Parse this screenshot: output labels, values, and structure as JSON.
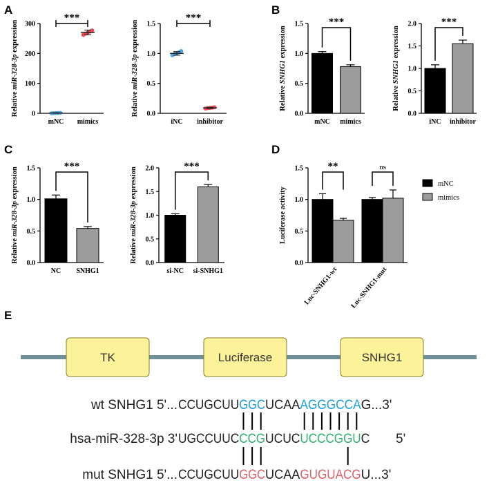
{
  "panel_letters": {
    "A": "A",
    "B": "B",
    "C": "C",
    "D": "D",
    "E": "E"
  },
  "sig": {
    "three": "***",
    "two": "**",
    "ns": "ns"
  },
  "colors": {
    "black": "#000000",
    "gray": "#9c9c9c",
    "blue": "#4fa3e0",
    "red": "#e8474f",
    "seq_blue": "#1aa0dc",
    "seq_green": "#2db26e",
    "seq_red": "#e0606a",
    "box_fill": "#fbf29a",
    "box_stroke": "#8a7d2a",
    "line": "#6f8f99"
  },
  "chart_data": [
    {
      "id": "A1",
      "type": "scatter",
      "ylabel_pre": "Relative ",
      "ylabel_it": "miR-328-3p",
      "ylabel_post": " expression",
      "categories": [
        "mNC",
        "mimics"
      ],
      "ylim": [
        0,
        300
      ],
      "yticks": [
        0,
        100,
        200,
        300
      ],
      "means": [
        1,
        270
      ],
      "errors": [
        1,
        8
      ],
      "points": [
        [
          0,
          0.5,
          0.8,
          1.2,
          1.5
        ],
        [
          262,
          266,
          270,
          273,
          277
        ]
      ],
      "point_colors": [
        "blue",
        "red"
      ],
      "sig": "***"
    },
    {
      "id": "A2",
      "type": "scatter",
      "ylabel_pre": "Relative ",
      "ylabel_it": "miR-328-3p",
      "ylabel_post": " expression",
      "categories": [
        "iNC",
        "inhibitor"
      ],
      "ylim": [
        0,
        1.5
      ],
      "yticks": [
        0,
        0.5,
        1.0,
        1.5
      ],
      "means": [
        1.0,
        0.09
      ],
      "errors": [
        0.03,
        0.01
      ],
      "points": [
        [
          0.97,
          0.99,
          1.0,
          1.02,
          1.04
        ],
        [
          0.08,
          0.085,
          0.09,
          0.095,
          0.1
        ]
      ],
      "point_colors": [
        "blue",
        "red"
      ],
      "sig": "***"
    },
    {
      "id": "B1",
      "type": "bar",
      "ylabel_pre": "Relative ",
      "ylabel_it": "SNHG1",
      "ylabel_post": " expression",
      "categories": [
        "mNC",
        "mimics"
      ],
      "ylim": [
        0,
        1.5
      ],
      "yticks": [
        0,
        0.5,
        1.0,
        1.5
      ],
      "values": [
        1.0,
        0.78
      ],
      "errors": [
        0.03,
        0.03
      ],
      "bar_colors": [
        "black",
        "gray"
      ],
      "sig": "***"
    },
    {
      "id": "B2",
      "type": "bar",
      "ylabel_pre": "Relative ",
      "ylabel_it": "SNHG1",
      "ylabel_post": " expression",
      "categories": [
        "iNC",
        "inhibitor"
      ],
      "ylim": [
        0,
        2.0
      ],
      "yticks": [
        0,
        0.5,
        1.0,
        1.5,
        2.0
      ],
      "values": [
        1.0,
        1.55
      ],
      "errors": [
        0.08,
        0.08
      ],
      "bar_colors": [
        "black",
        "gray"
      ],
      "sig": "***"
    },
    {
      "id": "C1",
      "type": "bar",
      "ylabel_pre": "Relative ",
      "ylabel_it": "miR-328-3p",
      "ylabel_post": " expression",
      "categories": [
        "NC",
        "SNHG1"
      ],
      "ylim": [
        0,
        1.5
      ],
      "yticks": [
        0,
        0.5,
        1.0,
        1.5
      ],
      "values": [
        1.01,
        0.54
      ],
      "errors": [
        0.06,
        0.03
      ],
      "bar_colors": [
        "black",
        "gray"
      ],
      "sig": "***"
    },
    {
      "id": "C2",
      "type": "bar",
      "ylabel_pre": "Relative ",
      "ylabel_it": "miR-328-3p",
      "ylabel_post": " expression",
      "categories": [
        "si-NC",
        "si-SNHG1"
      ],
      "ylim": [
        0,
        2.0
      ],
      "yticks": [
        0,
        0.5,
        1.0,
        1.5,
        2.0
      ],
      "values": [
        1.0,
        1.6
      ],
      "errors": [
        0.03,
        0.05
      ],
      "bar_colors": [
        "black",
        "gray"
      ],
      "sig": "***"
    },
    {
      "id": "D",
      "type": "bar",
      "ylabel_pre": "Luciferase activity",
      "ylabel_it": "",
      "ylabel_post": "",
      "categories": [
        "Luc-SNHG1-wt",
        "Luc-SNHG1-mut"
      ],
      "ylim": [
        0,
        1.5
      ],
      "yticks": [
        0,
        0.5,
        1.0,
        1.5
      ],
      "series": [
        {
          "name": "mNC",
          "values": [
            1.0,
            1.0
          ],
          "errors": [
            0.09,
            0.03
          ],
          "color": "black"
        },
        {
          "name": "mimics",
          "values": [
            0.67,
            1.02
          ],
          "errors": [
            0.03,
            0.13
          ],
          "color": "gray"
        }
      ],
      "sig": [
        "**",
        "ns"
      ]
    }
  ],
  "panel_e": {
    "boxes": [
      "TK",
      "Luciferase",
      "SNHG1"
    ],
    "rows": [
      {
        "label": "wt SNHG1 5'...",
        "segments": [
          [
            "CCUGCUU",
            null
          ],
          [
            "GGC",
            "seq_blue"
          ],
          [
            "UCAA",
            null
          ],
          [
            "AGGGCCA",
            "seq_blue"
          ],
          [
            "G...3'",
            null
          ]
        ]
      },
      {
        "label": "hsa-miR-328-3p 3'",
        "segments": [
          [
            "UGCCUUC",
            null
          ],
          [
            "CCG",
            "seq_green"
          ],
          [
            "UCUC",
            null
          ],
          [
            "UCCCGGU",
            "seq_green"
          ],
          [
            "C",
            null
          ],
          [
            "5'",
            null
          ]
        ]
      },
      {
        "label": "mut SNHG1 5'...",
        "segments": [
          [
            "CCUGCUU",
            null
          ],
          [
            "GGC",
            "seq_red"
          ],
          [
            "UCAA",
            null
          ],
          [
            "GUGUACG",
            "seq_red"
          ],
          [
            "U...3'",
            null
          ]
        ]
      }
    ]
  }
}
